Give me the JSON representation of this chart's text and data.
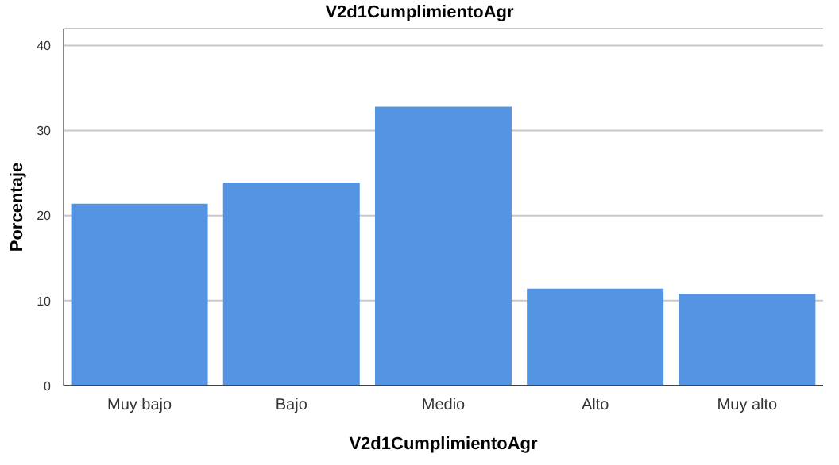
{
  "chart_data": {
    "type": "bar",
    "title": "V2d1CumplimientoAgr",
    "xlabel": "V2d1CumplimientoAgr",
    "ylabel": "Porcentaje",
    "categories": [
      "Muy bajo",
      "Bajo",
      "Medio",
      "Alto",
      "Muy alto"
    ],
    "values": [
      21.4,
      23.9,
      32.8,
      11.4,
      10.8
    ],
    "color": "#5594e2",
    "ylim": [
      0,
      42
    ],
    "yticks": [
      0,
      10,
      20,
      30,
      40
    ],
    "grid": "y"
  }
}
